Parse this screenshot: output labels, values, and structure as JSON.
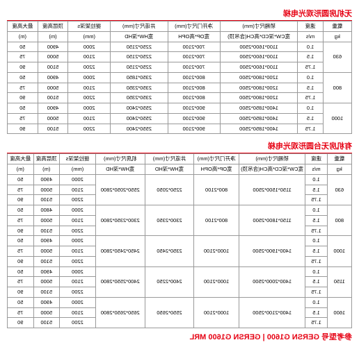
{
  "title1": "无机房圆形观光电梯",
  "title2": "有机房无台圆形观光电梯",
  "model_line": "参考型号 GERSN G1600 | GERSN G1600 MRL",
  "headers": {
    "load": "载重",
    "load_unit": "kg",
    "speed": "速度",
    "speed_unit": "m/s",
    "car": "轿厢尺寸(mm)",
    "car_sub": "宽CW*深CD*高CH(含吊顶)",
    "door": "净开门尺寸(mm)",
    "door_sub": "宽OP*高OPH",
    "well": "井道尺寸(mm)",
    "well_sub": "宽HW*深HD",
    "mr": "机房尺寸(mm)",
    "mr_sub": "宽HW*深HD",
    "tb": "提拉架深s",
    "tb_unit": "(mm)",
    "oh": "顶层高度",
    "oh_unit": "(m)",
    "pit": "最大高度",
    "pit_unit": "(m)"
  },
  "table1": [
    {
      "load": "630",
      "rows": [
        {
          "s": "1.0",
          "car": "1100*1600*2500",
          "door": "700*2100",
          "well": "2250*2150",
          "tb": "2000",
          "oh": "4900",
          "pit": "50"
        },
        {
          "s": "1.5",
          "car": "1100*1600*2500",
          "door": "700*2100",
          "well": "2250*2150",
          "tb": "2100",
          "oh": "5000",
          "pit": "75"
        },
        {
          "s": "1.75",
          "car": "1100*1600*2500",
          "door": "700*2100",
          "well": "2250*2150",
          "tb": "2200",
          "oh": "5100",
          "pit": "90"
        }
      ]
    },
    {
      "load": "800",
      "rows": [
        {
          "s": "1.0",
          "car": "1200*1800*2500",
          "door": "800*2100",
          "well": "2350*1850",
          "tb": "2000",
          "oh": "4900",
          "pit": "50"
        },
        {
          "s": "1.5",
          "car": "1200*1800*2500",
          "door": "800*2100",
          "well": "2350*2350",
          "tb": "2100",
          "oh": "5000",
          "pit": "75"
        },
        {
          "s": "1.75",
          "car": "1200*1800*2500",
          "door": "800*2100",
          "well": "2350*2350",
          "tb": "2200",
          "oh": "5100",
          "pit": "90"
        }
      ]
    },
    {
      "load": "1000",
      "rows": [
        {
          "s": "1.0",
          "car": "1400*1850*2500",
          "door": "900*2100",
          "well": "2550*2400",
          "tb": "2000",
          "oh": "4900",
          "pit": "50"
        },
        {
          "s": "1.5",
          "car": "1400*1850*2500",
          "door": "900*2100",
          "well": "2550*2400",
          "tb": "2100",
          "oh": "5000",
          "pit": "75"
        },
        {
          "s": "1.75",
          "car": "1400*1850*2500",
          "door": "900*2100",
          "well": "2550*2400",
          "tb": "2200",
          "oh": "5100",
          "pit": "90"
        }
      ]
    }
  ],
  "table2": [
    {
      "load": "630",
      "rows": [
        {
          "s": "1.0",
          "car": "1150*1500*2500",
          "door": "800*2100",
          "well": "2250*2050",
          "mr": "2550*2050*2800",
          "tb": "2000",
          "oh": "4900",
          "pit": "50"
        },
        {
          "s": "1.5",
          "car": "",
          "door": "",
          "well": "",
          "mr": "",
          "tb": "2100",
          "oh": "5000",
          "pit": "75"
        },
        {
          "s": "1.75",
          "car": "",
          "door": "",
          "well": "",
          "mr": "",
          "tb": "2200",
          "oh": "5100",
          "pit": "90"
        }
      ]
    },
    {
      "load": "800",
      "rows": [
        {
          "s": "1.0",
          "car": "1150*1800*2500",
          "door": "800*2100",
          "well": "2300*2350",
          "mr": "2300*2350*2800",
          "tb": "2000",
          "oh": "4800",
          "pit": "50"
        },
        {
          "s": "1.5",
          "car": "",
          "door": "",
          "well": "",
          "mr": "",
          "tb": "2100",
          "oh": "5000",
          "pit": "75"
        },
        {
          "s": "1.75",
          "car": "",
          "door": "",
          "well": "",
          "mr": "",
          "tb": "2200",
          "oh": "5100",
          "pit": "90"
        }
      ]
    },
    {
      "load": "1000",
      "rows": [
        {
          "s": "1.0",
          "car": "1400*1900*2500",
          "door": "1000*2100",
          "well": "2350*2450",
          "mr": "2450*2450*2800",
          "tb": "2000",
          "oh": "4900",
          "pit": "50"
        },
        {
          "s": "1.5",
          "car": "",
          "door": "",
          "well": "",
          "mr": "",
          "tb": "2100",
          "oh": "5000",
          "pit": "75"
        },
        {
          "s": "1.75",
          "car": "",
          "door": "",
          "well": "",
          "mr": "",
          "tb": "2200",
          "oh": "5100",
          "pit": "90"
        }
      ]
    },
    {
      "load": "1150",
      "rows": [
        {
          "s": "1.0",
          "car": "1400*2000*2500",
          "door": "1000*2100",
          "well": "2400*2250",
          "mr": "2400*2550*2800",
          "tb": "2000",
          "oh": "4900",
          "pit": "50"
        },
        {
          "s": "1.5",
          "car": "",
          "door": "",
          "well": "",
          "mr": "",
          "tb": "2100",
          "oh": "5000",
          "pit": "75"
        },
        {
          "s": "1.75",
          "car": "",
          "door": "",
          "well": "",
          "mr": "",
          "tb": "2200",
          "oh": "5100",
          "pit": "90"
        }
      ]
    },
    {
      "load": "1600",
      "rows": [
        {
          "s": "1.0",
          "car": "1400*2100*2500",
          "door": "1000*2100",
          "well": "2550*2650",
          "mr": "2650*2650*2800",
          "tb": "2000",
          "oh": "4900",
          "pit": "50"
        },
        {
          "s": "1.5",
          "car": "",
          "door": "",
          "well": "",
          "mr": "",
          "tb": "2100",
          "oh": "5000",
          "pit": "75"
        },
        {
          "s": "1.75",
          "car": "",
          "door": "",
          "well": "",
          "mr": "",
          "tb": "2200",
          "oh": "5100",
          "pit": "90"
        }
      ]
    }
  ]
}
